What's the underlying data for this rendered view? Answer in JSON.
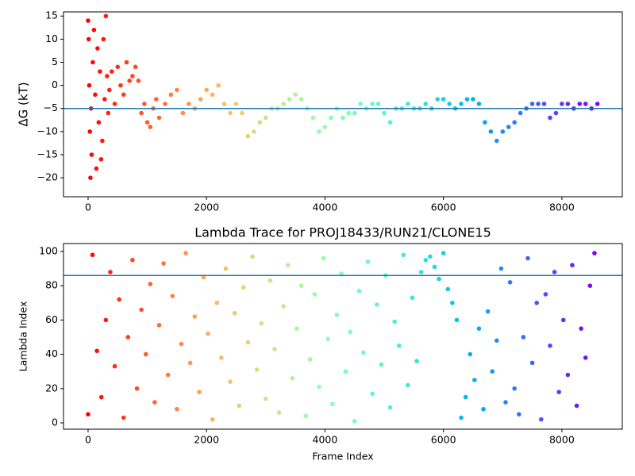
{
  "chart_data": [
    {
      "type": "scatter",
      "ylabel": "ΔG (kT)",
      "colormap": "rainbow_r",
      "x": [
        0,
        10,
        20,
        30,
        40,
        50,
        60,
        80,
        100,
        120,
        140,
        160,
        180,
        200,
        220,
        240,
        260,
        280,
        300,
        320,
        340,
        360,
        400,
        450,
        500,
        550,
        600,
        650,
        700,
        750,
        800,
        850,
        900,
        950,
        1000,
        1050,
        1100,
        1150,
        1200,
        1300,
        1400,
        1500,
        1600,
        1700,
        1800,
        1900,
        2000,
        2100,
        2200,
        2300,
        2400,
        2500,
        2600,
        2700,
        2800,
        2900,
        3000,
        3100,
        3200,
        3300,
        3400,
        3500,
        3600,
        3700,
        3800,
        3900,
        4000,
        4100,
        4200,
        4300,
        4400,
        4500,
        4600,
        4700,
        4800,
        4900,
        5000,
        5100,
        5200,
        5300,
        5400,
        5500,
        5600,
        5700,
        5800,
        5900,
        6000,
        6100,
        6200,
        6300,
        6400,
        6500,
        6600,
        6700,
        6800,
        6900,
        7000,
        7100,
        7200,
        7300,
        7400,
        7500,
        7600,
        7700,
        7800,
        7900,
        8000,
        8100,
        8200,
        8300,
        8400,
        8500,
        8600
      ],
      "values": [
        14,
        10,
        0,
        -10,
        -20,
        -5,
        -15,
        5,
        12,
        -2,
        -18,
        8,
        -8,
        3,
        -16,
        -12,
        10,
        -3,
        15,
        2,
        -6,
        -1,
        3,
        -4,
        4,
        0,
        -2,
        5,
        1,
        2,
        4,
        1,
        -6,
        -4,
        -8,
        -9,
        -5,
        -3,
        -7,
        -4,
        -2,
        -1,
        -6,
        -4,
        -5,
        -3,
        -1,
        -2,
        0,
        -4,
        -6,
        -4,
        -6,
        -11,
        -10,
        -8,
        -7,
        -5,
        -5,
        -4,
        -3,
        -2,
        -3,
        -5,
        -7,
        -10,
        -9,
        -7,
        -5,
        -7,
        -6,
        -6,
        -4,
        -5,
        -4,
        -4,
        -6,
        -8,
        -5,
        -5,
        -4,
        -5,
        -5,
        -4,
        -5,
        -3,
        -3,
        -4,
        -5,
        -4,
        -3,
        -3,
        -4,
        -8,
        -10,
        -12,
        -10,
        -9,
        -8,
        -6,
        -5,
        -4,
        -4,
        -4,
        -7,
        -6,
        -4,
        -4,
        -5,
        -4,
        -4,
        -5,
        -4
      ],
      "xlim": [
        -415,
        9020
      ],
      "ylim": [
        -24.1,
        15.9
      ],
      "xticks": [
        0,
        2000,
        4000,
        6000,
        8000
      ],
      "yticks": [
        {
          "value": -20,
          "label": "−20"
        },
        {
          "value": -15,
          "label": "−15"
        },
        {
          "value": -10,
          "label": "−10"
        },
        {
          "value": -5,
          "label": "−5"
        },
        0,
        5,
        10,
        15
      ],
      "hline": {
        "value": -5,
        "color": "#1f77b4"
      }
    },
    {
      "type": "scatter",
      "title": "Lambda Trace for PROJ18433/RUN21/CLONE15",
      "xlabel": "Frame Index",
      "ylabel": "Lambda Index",
      "colormap": "rainbow_r",
      "x": [
        0,
        75,
        150,
        225,
        300,
        375,
        450,
        525,
        600,
        675,
        750,
        825,
        900,
        975,
        1050,
        1125,
        1200,
        1275,
        1350,
        1425,
        1500,
        1575,
        1650,
        1725,
        1800,
        1875,
        1950,
        2025,
        2100,
        2175,
        2250,
        2325,
        2400,
        2475,
        2550,
        2625,
        2700,
        2775,
        2850,
        2925,
        3000,
        3075,
        3150,
        3225,
        3300,
        3375,
        3450,
        3525,
        3600,
        3675,
        3750,
        3825,
        3900,
        3975,
        4050,
        4125,
        4200,
        4275,
        4350,
        4425,
        4500,
        4575,
        4650,
        4725,
        4800,
        4875,
        4950,
        5025,
        5100,
        5175,
        5250,
        5325,
        5400,
        5475,
        5550,
        5625,
        5700,
        5775,
        5850,
        5925,
        6000,
        6075,
        6150,
        6225,
        6300,
        6375,
        6450,
        6525,
        6600,
        6675,
        6750,
        6825,
        6900,
        6975,
        7050,
        7125,
        7200,
        7275,
        7350,
        7425,
        7500,
        7575,
        7650,
        7725,
        7800,
        7875,
        7950,
        8025,
        8100,
        8175,
        8250,
        8325,
        8400,
        8475,
        8550
      ],
      "values": [
        5,
        98,
        42,
        15,
        60,
        88,
        33,
        72,
        3,
        50,
        95,
        20,
        66,
        40,
        81,
        12,
        57,
        93,
        28,
        74,
        8,
        46,
        99,
        35,
        62,
        18,
        85,
        52,
        2,
        70,
        38,
        90,
        24,
        64,
        10,
        79,
        47,
        97,
        31,
        58,
        14,
        83,
        43,
        6,
        68,
        92,
        26,
        55,
        80,
        4,
        37,
        75,
        21,
        96,
        49,
        11,
        63,
        87,
        30,
        53,
        1,
        77,
        41,
        94,
        17,
        69,
        34,
        86,
        9,
        59,
        45,
        98,
        22,
        73,
        36,
        88,
        95,
        97,
        91,
        84,
        99,
        78,
        70,
        60,
        3,
        15,
        40,
        25,
        55,
        8,
        65,
        30,
        48,
        90,
        12,
        82,
        20,
        5,
        50,
        96,
        35,
        70,
        2,
        75,
        45,
        88,
        18,
        60,
        28,
        92,
        10,
        55,
        38,
        80,
        99
      ],
      "xlim": [
        -415,
        9020
      ],
      "ylim": [
        -3.7,
        104.6
      ],
      "xticks": [
        0,
        2000,
        4000,
        6000,
        8000
      ],
      "yticks": [
        0,
        20,
        40,
        60,
        80,
        100
      ],
      "hline": {
        "value": 86,
        "color": "#1f77b4"
      }
    }
  ]
}
